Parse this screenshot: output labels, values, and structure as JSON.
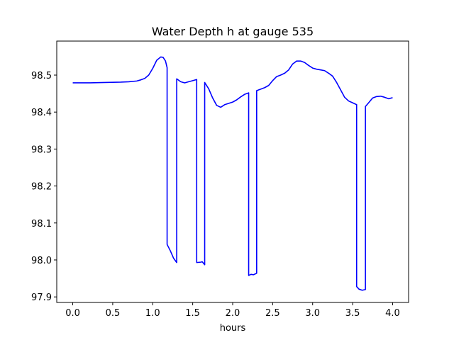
{
  "chart_data": {
    "type": "line",
    "title": "Water Depth h at gauge 535",
    "xlabel": "hours",
    "ylabel": "",
    "xlim": [
      -0.2,
      4.2
    ],
    "ylim": [
      97.885,
      98.592
    ],
    "grid": false,
    "xticks": [
      0.0,
      0.5,
      1.0,
      1.5,
      2.0,
      2.5,
      3.0,
      3.5,
      4.0
    ],
    "xtick_labels": [
      "0.0",
      "0.5",
      "1.0",
      "1.5",
      "2.0",
      "2.5",
      "3.0",
      "3.5",
      "4.0"
    ],
    "yticks": [
      97.9,
      98.0,
      98.1,
      98.2,
      98.3,
      98.4,
      98.5
    ],
    "ytick_labels": [
      "97.9",
      "98.0",
      "98.1",
      "98.2",
      "98.3",
      "98.4",
      "98.5"
    ],
    "series": [
      {
        "color": "#0000ff",
        "x": [
          0.0,
          0.2,
          0.4,
          0.6,
          0.7,
          0.8,
          0.85,
          0.9,
          0.95,
          1.0,
          1.05,
          1.1,
          1.13,
          1.16,
          1.18,
          1.18,
          1.22,
          1.26,
          1.3,
          1.3,
          1.35,
          1.4,
          1.45,
          1.5,
          1.55,
          1.55,
          1.6,
          1.62,
          1.65,
          1.65,
          1.7,
          1.75,
          1.8,
          1.85,
          1.9,
          2.0,
          2.05,
          2.1,
          2.15,
          2.2,
          2.2,
          2.23,
          2.26,
          2.3,
          2.3,
          2.35,
          2.4,
          2.45,
          2.5,
          2.55,
          2.6,
          2.65,
          2.7,
          2.75,
          2.8,
          2.85,
          2.9,
          2.95,
          3.0,
          3.05,
          3.1,
          3.15,
          3.2,
          3.25,
          3.3,
          3.35,
          3.4,
          3.45,
          3.5,
          3.55,
          3.55,
          3.58,
          3.62,
          3.66,
          3.66,
          3.7,
          3.75,
          3.8,
          3.85,
          3.9,
          3.95,
          4.0
        ],
        "y": [
          98.479,
          98.479,
          98.48,
          98.481,
          98.482,
          98.484,
          98.487,
          98.491,
          98.5,
          98.518,
          98.54,
          98.549,
          98.548,
          98.538,
          98.52,
          98.042,
          98.025,
          98.005,
          97.993,
          98.49,
          98.482,
          98.479,
          98.482,
          98.485,
          98.488,
          97.993,
          97.994,
          97.995,
          97.987,
          98.48,
          98.463,
          98.438,
          98.418,
          98.413,
          98.42,
          98.427,
          98.433,
          98.441,
          98.448,
          98.452,
          97.958,
          97.961,
          97.96,
          97.964,
          98.458,
          98.462,
          98.466,
          98.472,
          98.485,
          98.496,
          98.5,
          98.505,
          98.514,
          98.53,
          98.538,
          98.538,
          98.534,
          98.526,
          98.519,
          98.516,
          98.514,
          98.512,
          98.505,
          98.497,
          98.48,
          98.46,
          98.44,
          98.43,
          98.425,
          98.42,
          97.928,
          97.921,
          97.918,
          97.92,
          98.415,
          98.425,
          98.438,
          98.442,
          98.443,
          98.44,
          98.436,
          98.439
        ]
      }
    ]
  }
}
